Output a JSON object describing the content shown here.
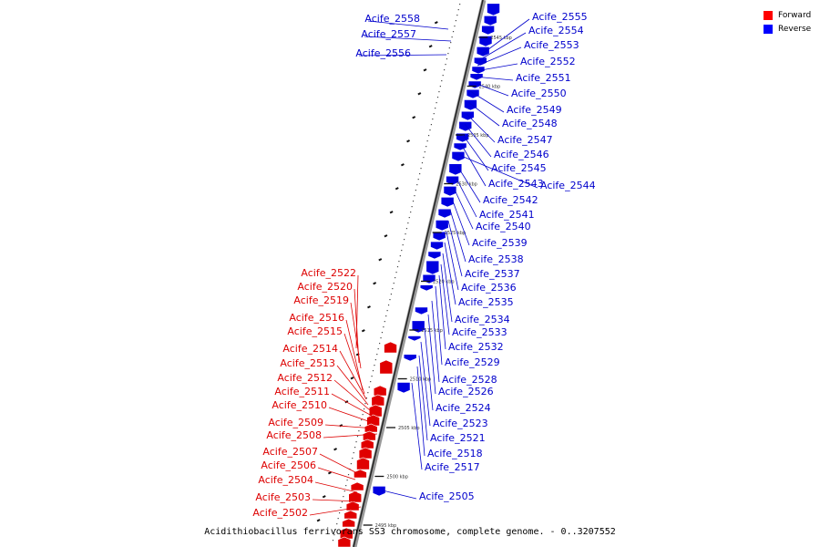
{
  "caption": "Acidithiobacillus ferrivorans SS3 chromosome, complete genome. - 0..3207552",
  "legend": [
    {
      "label": "Forward",
      "color": "#ff0000"
    },
    {
      "label": "Reverse",
      "color": "#0000ff"
    }
  ],
  "colors": {
    "forward": "#e00000",
    "reverse": "#0000e0",
    "forward_text": "#dd0000",
    "reverse_text": "#0000cc"
  },
  "scale_ticks": [
    "2545 kbp",
    "2540 kbp",
    "2535 kbp",
    "2530 kbp",
    "2525 kbp",
    "2520 kbp",
    "2515 kbp",
    "2510 kbp",
    "2505 kbp",
    "2500 kbp",
    "2495 kbp"
  ],
  "reverse_genes": [
    "Acife_2558",
    "Acife_2557",
    "Acife_2556",
    "Acife_2555",
    "Acife_2554",
    "Acife_2553",
    "Acife_2552",
    "Acife_2551",
    "Acife_2550",
    "Acife_2549",
    "Acife_2548",
    "Acife_2547",
    "Acife_2546",
    "Acife_2545",
    "Acife_2543",
    "Acife_2544",
    "Acife_2542",
    "Acife_2541",
    "Acife_2540",
    "Acife_2539",
    "Acife_2538",
    "Acife_2537",
    "Acife_2536",
    "Acife_2535",
    "Acife_2534",
    "Acife_2533",
    "Acife_2532",
    "Acife_2529",
    "Acife_2528",
    "Acife_2526",
    "Acife_2524",
    "Acife_2523",
    "Acife_2521",
    "Acife_2518",
    "Acife_2517",
    "Acife_2505"
  ],
  "forward_genes": [
    "Acife_2522",
    "Acife_2520",
    "Acife_2519",
    "Acife_2516",
    "Acife_2515",
    "Acife_2514",
    "Acife_2513",
    "Acife_2512",
    "Acife_2511",
    "Acife_2510",
    "Acife_2509",
    "Acife_2508",
    "Acife_2507",
    "Acife_2506",
    "Acife_2504",
    "Acife_2503",
    "Acife_2502"
  ]
}
